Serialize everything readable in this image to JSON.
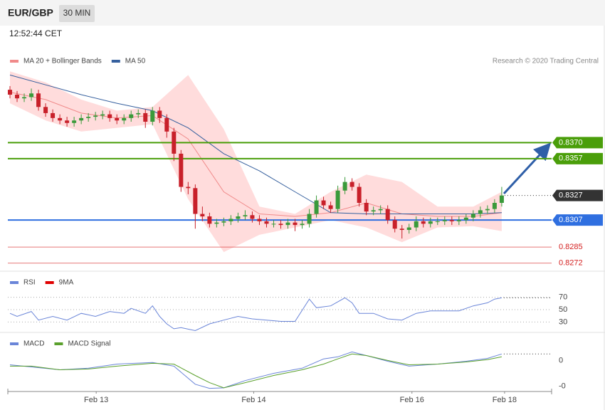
{
  "header": {
    "symbol": "EUR/GBP",
    "timeframe": "30 MIN",
    "time": "12:52:44 CET"
  },
  "chart_data": [
    {
      "type": "candlestick",
      "source": "Research © 2020 Trading Central",
      "xlim": [
        -0.3,
        76
      ],
      "ylim": [
        0.8266,
        0.8431
      ],
      "up_color": "#3a9a3a",
      "down_color": "#c8202a",
      "x": [
        0,
        1,
        2,
        3,
        4,
        5,
        6,
        7,
        8,
        9,
        10,
        11,
        12,
        13,
        14,
        15,
        16,
        17,
        18,
        19,
        20,
        21,
        22,
        23,
        24,
        25,
        26,
        27,
        28,
        29,
        30,
        31,
        32,
        33,
        34,
        35,
        36,
        37,
        38,
        39,
        40,
        41,
        42,
        43,
        44,
        45,
        46,
        47,
        48,
        49,
        50,
        51,
        52,
        53,
        54,
        55,
        56,
        57,
        58,
        59,
        60,
        61,
        62,
        63,
        64,
        65,
        66,
        67,
        68,
        69
      ],
      "open": [
        0.8413,
        0.8409,
        0.8406,
        0.8407,
        0.841,
        0.8399,
        0.8394,
        0.839,
        0.8388,
        0.8386,
        0.8388,
        0.839,
        0.8391,
        0.8392,
        0.8393,
        0.839,
        0.8388,
        0.839,
        0.8393,
        0.8394,
        0.8387,
        0.8396,
        0.839,
        0.8379,
        0.8361,
        0.8334,
        0.8333,
        0.8312,
        0.831,
        0.8304,
        0.8305,
        0.8306,
        0.8308,
        0.831,
        0.8311,
        0.8308,
        0.8306,
        0.8304,
        0.8304,
        0.8303,
        0.8305,
        0.8303,
        0.8304,
        0.8312,
        0.8323,
        0.8319,
        0.8316,
        0.8331,
        0.8338,
        0.8334,
        0.8321,
        0.8314,
        0.8315,
        0.8316,
        0.8307,
        0.83,
        0.8299,
        0.8301,
        0.8306,
        0.8304,
        0.8306,
        0.8306,
        0.8307,
        0.8306,
        0.8307,
        0.8309,
        0.8312,
        0.8315,
        0.8316,
        0.8321
      ],
      "high": [
        0.8416,
        0.8412,
        0.841,
        0.8414,
        0.8413,
        0.8402,
        0.8397,
        0.8393,
        0.8391,
        0.8391,
        0.8393,
        0.8394,
        0.8395,
        0.8396,
        0.8396,
        0.8393,
        0.8393,
        0.8396,
        0.8397,
        0.8397,
        0.8399,
        0.8399,
        0.8393,
        0.8382,
        0.8364,
        0.8338,
        0.8336,
        0.8318,
        0.8313,
        0.8308,
        0.8309,
        0.8311,
        0.8313,
        0.8315,
        0.8314,
        0.8311,
        0.8309,
        0.8307,
        0.8307,
        0.8308,
        0.8308,
        0.8307,
        0.8316,
        0.8327,
        0.8326,
        0.8322,
        0.8335,
        0.8342,
        0.8341,
        0.8337,
        0.8324,
        0.8318,
        0.8319,
        0.8319,
        0.831,
        0.8303,
        0.8304,
        0.831,
        0.8309,
        0.8309,
        0.8309,
        0.831,
        0.831,
        0.831,
        0.8312,
        0.8315,
        0.8318,
        0.8319,
        0.8324,
        0.8334
      ],
      "low": [
        0.8406,
        0.8403,
        0.8403,
        0.8404,
        0.8396,
        0.8391,
        0.8387,
        0.8385,
        0.8383,
        0.8383,
        0.8385,
        0.8387,
        0.8388,
        0.8389,
        0.8387,
        0.8385,
        0.8385,
        0.8387,
        0.839,
        0.8382,
        0.8384,
        0.8386,
        0.8374,
        0.8355,
        0.833,
        0.8328,
        0.83,
        0.8306,
        0.8301,
        0.8301,
        0.8302,
        0.8303,
        0.8305,
        0.8307,
        0.8305,
        0.8303,
        0.8301,
        0.8301,
        0.83,
        0.83,
        0.8298,
        0.83,
        0.8301,
        0.8309,
        0.8316,
        0.8313,
        0.8313,
        0.8328,
        0.8331,
        0.8318,
        0.8311,
        0.8311,
        0.8312,
        0.8304,
        0.8297,
        0.8292,
        0.8296,
        0.8298,
        0.8301,
        0.8301,
        0.8303,
        0.8303,
        0.8303,
        0.8303,
        0.8304,
        0.8306,
        0.8309,
        0.8312,
        0.8313,
        0.8318
      ],
      "close": [
        0.8409,
        0.8406,
        0.8407,
        0.841,
        0.8399,
        0.8394,
        0.839,
        0.8388,
        0.8386,
        0.8388,
        0.839,
        0.8391,
        0.8392,
        0.8393,
        0.839,
        0.8388,
        0.839,
        0.8393,
        0.8394,
        0.8387,
        0.8396,
        0.839,
        0.8379,
        0.8361,
        0.8334,
        0.8333,
        0.8312,
        0.831,
        0.8304,
        0.8305,
        0.8306,
        0.8308,
        0.831,
        0.8311,
        0.8308,
        0.8306,
        0.8304,
        0.8304,
        0.8303,
        0.8305,
        0.8303,
        0.8304,
        0.8312,
        0.8323,
        0.8319,
        0.8316,
        0.8331,
        0.8338,
        0.8334,
        0.8321,
        0.8314,
        0.8315,
        0.8316,
        0.8307,
        0.83,
        0.8299,
        0.8301,
        0.8306,
        0.8304,
        0.8306,
        0.8306,
        0.8307,
        0.8306,
        0.8307,
        0.8309,
        0.8312,
        0.8315,
        0.8316,
        0.8321,
        0.8327
      ],
      "overlays": [
        {
          "name": "MA 20 + Bollinger Bands",
          "color": "#f08a8a",
          "band_color": "#ffdcdc",
          "x": [
            0,
            5,
            10,
            15,
            20,
            25,
            30,
            35,
            40,
            45,
            50,
            55,
            60,
            65,
            69
          ],
          "values": [
            0.8411,
            0.8405,
            0.8394,
            0.839,
            0.8392,
            0.8373,
            0.833,
            0.8312,
            0.831,
            0.8313,
            0.8321,
            0.8312,
            0.831,
            0.831,
            0.8313
          ],
          "upper": [
            0.8428,
            0.8419,
            0.8405,
            0.8396,
            0.8399,
            0.8425,
            0.8381,
            0.8318,
            0.8312,
            0.833,
            0.8344,
            0.8338,
            0.8318,
            0.8318,
            0.833
          ],
          "lower": [
            0.8402,
            0.8388,
            0.8379,
            0.8382,
            0.8385,
            0.8324,
            0.8281,
            0.8295,
            0.8301,
            0.8307,
            0.8301,
            0.8289,
            0.8301,
            0.8302,
            0.8298
          ]
        },
        {
          "name": "MA 50",
          "color": "#36609e",
          "x": [
            0,
            5,
            10,
            15,
            20,
            25,
            30,
            35,
            40,
            45,
            50,
            55,
            60,
            65,
            69
          ],
          "values": [
            0.8425,
            0.8417,
            0.8409,
            0.8402,
            0.8396,
            0.8382,
            0.8361,
            0.8347,
            0.833,
            0.8313,
            0.8312,
            0.8312,
            0.8312,
            0.8312,
            0.8313
          ]
        }
      ],
      "levels": [
        {
          "value": 0.837,
          "label": "0.8370",
          "color": "#4a9e0a",
          "tag": true,
          "dotted": false
        },
        {
          "value": 0.8357,
          "label": "0.8357",
          "color": "#4a9e0a",
          "tag": true,
          "dotted": false
        },
        {
          "value": 0.8327,
          "label": "0.8327",
          "color": "#333333",
          "tag": true,
          "dotted": true
        },
        {
          "value": 0.8307,
          "label": "0.8307",
          "color": "#2f6fe0",
          "tag": true,
          "dotted": false
        },
        {
          "value": 0.8285,
          "label": "0.8285",
          "color": "#d42020",
          "tag": false,
          "dotted": false
        },
        {
          "value": 0.8272,
          "label": "0.8272",
          "color": "#d42020",
          "tag": false,
          "dotted": false
        }
      ]
    },
    {
      "type": "line",
      "xlim": [
        -0.3,
        76
      ],
      "ylim": [
        12,
        104
      ],
      "yticks": [
        70,
        50,
        30
      ],
      "grid": "dotted",
      "series": [
        {
          "name": "RSI",
          "color": "#6a85d8",
          "x": [
            0,
            1,
            3,
            4,
            6,
            8,
            10,
            12,
            14,
            16,
            17,
            19,
            20,
            21,
            22,
            23,
            24,
            26,
            28,
            30,
            32,
            34,
            36,
            38,
            40,
            42,
            43,
            45,
            47,
            48,
            49,
            51,
            53,
            55,
            57,
            59,
            61,
            63,
            65,
            67,
            68,
            69
          ],
          "values": [
            44,
            39,
            47,
            33,
            39,
            33,
            44,
            39,
            47,
            44,
            52,
            44,
            56,
            39,
            27,
            19,
            21,
            16,
            27,
            33,
            39,
            35,
            33,
            31,
            31,
            67,
            53,
            56,
            69,
            61,
            44,
            44,
            35,
            33,
            44,
            48,
            48,
            48,
            56,
            61,
            67,
            69
          ]
        },
        {
          "name": "9MA",
          "color": "#e00000"
        }
      ]
    },
    {
      "type": "line",
      "xlim": [
        -0.3,
        76
      ],
      "ylim": [
        -0.0012,
        0.001
      ],
      "yticks": [
        0,
        {
          "value": -0.001,
          "label": "-0"
        }
      ],
      "xticks": [
        {
          "value": 12.1,
          "label": "Feb 13"
        },
        {
          "value": 34.2,
          "label": "Feb 14"
        },
        {
          "value": 56.4,
          "label": "Feb 16"
        },
        {
          "value": 69.4,
          "label": "Feb 18"
        }
      ],
      "series": [
        {
          "name": "MACD",
          "color": "#6a85d8",
          "x": [
            0,
            3,
            7,
            11,
            15,
            20,
            23,
            26,
            28,
            30,
            33,
            37,
            41,
            44,
            46,
            48,
            50,
            53,
            56,
            60,
            64,
            67,
            69
          ],
          "values": [
            -0.00017,
            -0.00025,
            -0.00036,
            -0.0003,
            -0.00014,
            -8e-05,
            -0.00022,
            -0.00092,
            -0.00108,
            -0.00106,
            -0.00078,
            -0.0005,
            -0.0003,
            6e-05,
            0.00014,
            0.00033,
            0.00019,
            -3e-05,
            -0.00022,
            -0.00014,
            -3e-05,
            8e-05,
            0.00025
          ]
        },
        {
          "name": "MACD Signal",
          "color": "#5aa02c",
          "x": [
            0,
            3,
            7,
            11,
            15,
            20,
            23,
            26,
            28,
            30,
            33,
            37,
            41,
            44,
            46,
            48,
            50,
            53,
            56,
            60,
            64,
            67,
            69
          ],
          "values": [
            -0.00022,
            -0.00022,
            -0.00036,
            -0.00033,
            -0.00022,
            -0.00011,
            -0.00014,
            -0.00058,
            -0.00086,
            -0.00106,
            -0.00086,
            -0.00058,
            -0.00036,
            -0.00014,
            6e-05,
            0.00025,
            0.00019,
            0,
            -0.00017,
            -0.00014,
            -6e-05,
            3e-05,
            0.00014
          ]
        }
      ]
    }
  ]
}
